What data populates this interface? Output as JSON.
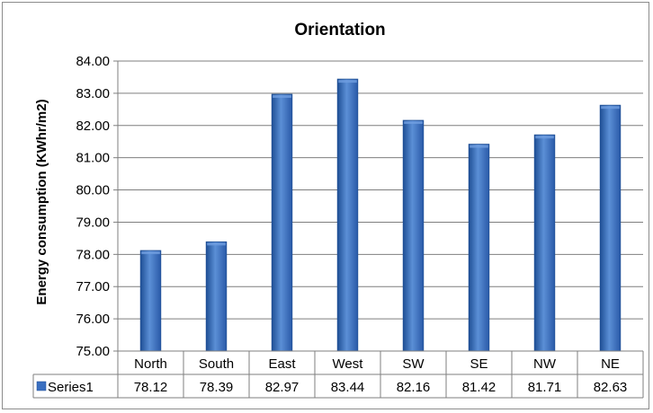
{
  "chart_data": {
    "type": "bar",
    "title": "Orientation",
    "xlabel": "",
    "ylabel": "Energy consumption (KWhr/m2)",
    "categories": [
      "North",
      "South",
      "East",
      "West",
      "SW",
      "SE",
      "NW",
      "NE"
    ],
    "series": [
      {
        "name": "Series1",
        "values": [
          78.12,
          78.39,
          82.97,
          83.44,
          82.16,
          81.42,
          81.71,
          82.63
        ]
      }
    ],
    "value_labels": [
      "78.12",
      "78.39",
      "82.97",
      "83.44",
      "82.16",
      "81.42",
      "81.71",
      "82.63"
    ],
    "ylim": [
      75.0,
      84.0
    ],
    "yticks": [
      "75.00",
      "76.00",
      "77.00",
      "78.00",
      "79.00",
      "80.00",
      "81.00",
      "82.00",
      "83.00",
      "84.00"
    ],
    "grid": true,
    "legend": "data-table",
    "colors": {
      "bar": "#3a6fc0",
      "bar_dark": "#1f4f95",
      "bar_light": "#6f9ee0",
      "grid": "#7f7f7f"
    }
  }
}
